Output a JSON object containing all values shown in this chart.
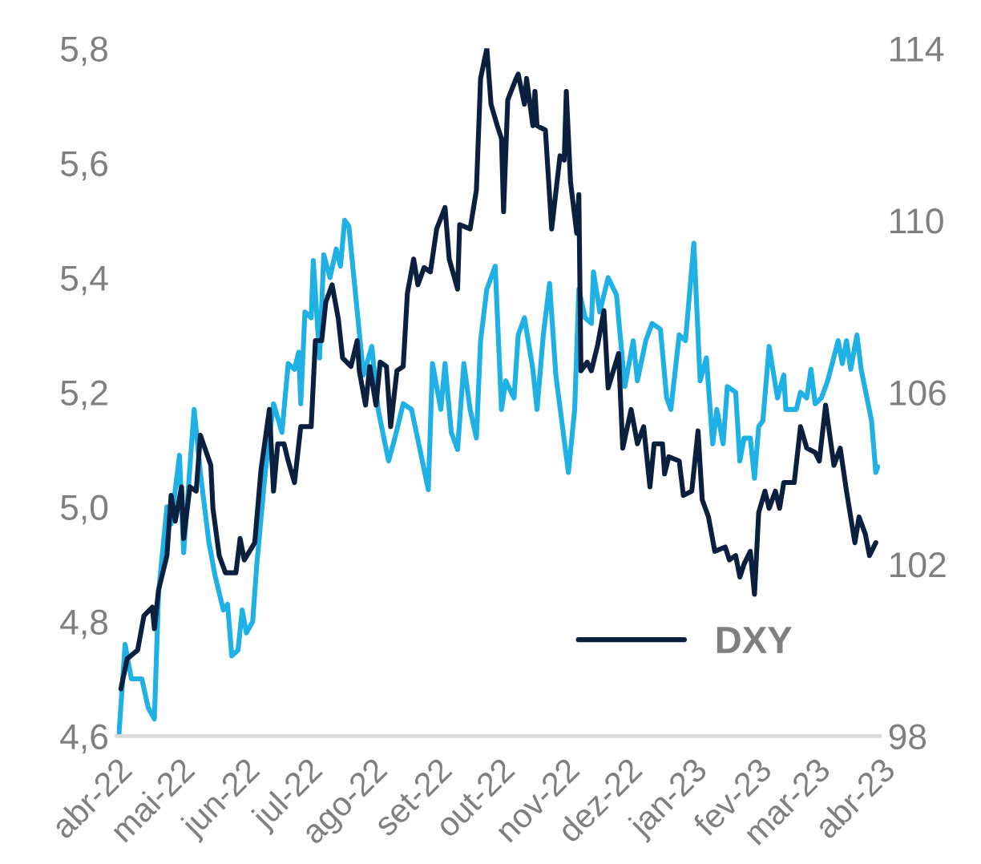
{
  "chart_data": {
    "type": "line",
    "xlim": [
      "2022-04-01",
      "2023-04-01"
    ],
    "xticks": [
      {
        "value": "2022-04-01",
        "label": "abr-22"
      },
      {
        "value": "2022-05-01",
        "label": "mai-22"
      },
      {
        "value": "2022-06-01",
        "label": "jun-22"
      },
      {
        "value": "2022-07-01",
        "label": "jul-22"
      },
      {
        "value": "2022-08-01",
        "label": "ago-22"
      },
      {
        "value": "2022-09-01",
        "label": "set-22"
      },
      {
        "value": "2022-10-01",
        "label": "out-22"
      },
      {
        "value": "2022-11-01",
        "label": "nov-22"
      },
      {
        "value": "2022-12-01",
        "label": "dez-22"
      },
      {
        "value": "2023-01-01",
        "label": "jan-23"
      },
      {
        "value": "2023-02-01",
        "label": "fev-23"
      },
      {
        "value": "2023-03-01",
        "label": "mar-23"
      },
      {
        "value": "2023-04-01",
        "label": "abr-23"
      }
    ],
    "ylim": [
      4.6,
      5.8
    ],
    "yticks": [
      {
        "value": 4.6,
        "label": "4,6"
      },
      {
        "value": 4.8,
        "label": "4,8"
      },
      {
        "value": 5.0,
        "label": "5,0"
      },
      {
        "value": 5.2,
        "label": "5,2"
      },
      {
        "value": 5.4,
        "label": "5,4"
      },
      {
        "value": 5.6,
        "label": "5,6"
      },
      {
        "value": 5.8,
        "label": "5,8"
      }
    ],
    "y2lim": [
      98,
      114
    ],
    "y2ticks": [
      98,
      102,
      106,
      110,
      114
    ],
    "grid": false,
    "legend": "bottom right",
    "series": [
      {
        "color": "#1fb0e6",
        "x": [
          "2022-04-02",
          "2022-04-05",
          "2022-04-08",
          "2022-04-12",
          "2022-04-13",
          "2022-04-16",
          "2022-04-19",
          "2022-04-21",
          "2022-04-25",
          "2022-04-27",
          "2022-05-01",
          "2022-05-03",
          "2022-05-08",
          "2022-05-11",
          "2022-05-15",
          "2022-05-18",
          "2022-05-22",
          "2022-05-24",
          "2022-05-26",
          "2022-05-29",
          "2022-05-31",
          "2022-06-02",
          "2022-06-05",
          "2022-06-07",
          "2022-06-11",
          "2022-06-15",
          "2022-06-19",
          "2022-06-22",
          "2022-06-25",
          "2022-06-27",
          "2022-06-28",
          "2022-06-30",
          "2022-07-03",
          "2022-07-04",
          "2022-07-07",
          "2022-07-09",
          "2022-07-12",
          "2022-07-15",
          "2022-07-17",
          "2022-07-19",
          "2022-07-21",
          "2022-07-28",
          "2022-08-01",
          "2022-08-04",
          "2022-08-09",
          "2022-08-12",
          "2022-08-16",
          "2022-08-20",
          "2022-08-24",
          "2022-08-28",
          "2022-08-30",
          "2022-09-03",
          "2022-09-05",
          "2022-09-08",
          "2022-09-11",
          "2022-09-14",
          "2022-09-17",
          "2022-09-20",
          "2022-09-22",
          "2022-09-25",
          "2022-09-29",
          "2022-10-02",
          "2022-10-04",
          "2022-10-08",
          "2022-10-10",
          "2022-10-13",
          "2022-10-17",
          "2022-10-19",
          "2022-10-22",
          "2022-10-25",
          "2022-10-28",
          "2022-11-03",
          "2022-11-06",
          "2022-11-08",
          "2022-11-11",
          "2022-11-14",
          "2022-11-15",
          "2022-11-18",
          "2022-11-22",
          "2022-11-26",
          "2022-11-30",
          "2022-12-04",
          "2022-12-06",
          "2022-12-10",
          "2022-12-13",
          "2022-12-17",
          "2022-12-20",
          "2022-12-22",
          "2022-12-26",
          "2022-12-29",
          "2023-01-02",
          "2023-01-05",
          "2023-01-08",
          "2023-01-11",
          "2023-01-13",
          "2023-01-16",
          "2023-01-18",
          "2023-01-22",
          "2023-01-24",
          "2023-01-26",
          "2023-01-29",
          "2023-01-31",
          "2023-02-02",
          "2023-02-04",
          "2023-02-07",
          "2023-02-11",
          "2023-02-14",
          "2023-02-15",
          "2023-02-20",
          "2023-02-22",
          "2023-02-25",
          "2023-02-27",
          "2023-03-01",
          "2023-03-04",
          "2023-03-07",
          "2023-03-12",
          "2023-03-14",
          "2023-03-16",
          "2023-03-18",
          "2023-03-21",
          "2023-03-23",
          "2023-03-28",
          "2023-03-30",
          "2023-03-31"
        ],
        "values": [
          4.6,
          4.76,
          4.7,
          4.7,
          4.7,
          4.65,
          4.63,
          4.85,
          5.0,
          4.97,
          5.09,
          4.92,
          5.17,
          5.06,
          4.94,
          4.88,
          4.82,
          4.83,
          4.74,
          4.75,
          4.82,
          4.78,
          4.8,
          4.9,
          5.06,
          5.18,
          5.13,
          5.25,
          5.24,
          5.27,
          5.18,
          5.34,
          5.33,
          5.43,
          5.26,
          5.44,
          5.4,
          5.45,
          5.42,
          5.5,
          5.49,
          5.23,
          5.28,
          5.17,
          5.08,
          5.12,
          5.18,
          5.17,
          5.1,
          5.03,
          5.25,
          5.17,
          5.25,
          5.13,
          5.1,
          5.25,
          5.17,
          5.12,
          5.29,
          5.38,
          5.42,
          5.17,
          5.22,
          5.19,
          5.3,
          5.33,
          5.24,
          5.17,
          5.3,
          5.39,
          5.23,
          5.06,
          5.17,
          5.38,
          5.33,
          5.32,
          5.41,
          5.34,
          5.4,
          5.37,
          5.21,
          5.29,
          5.22,
          5.29,
          5.32,
          5.31,
          5.19,
          5.17,
          5.3,
          5.29,
          5.46,
          5.22,
          5.26,
          5.11,
          5.17,
          5.11,
          5.21,
          5.2,
          5.08,
          5.12,
          5.12,
          5.05,
          5.14,
          5.15,
          5.28,
          5.19,
          5.23,
          5.17,
          5.17,
          5.2,
          5.19,
          5.24,
          5.18,
          5.19,
          5.22,
          5.29,
          5.25,
          5.29,
          5.24,
          5.3,
          5.24,
          5.15,
          5.06,
          5.07
        ]
      },
      {
        "name": "DXY",
        "color": "#0b1f3f",
        "axis": "y2",
        "x": [
          "2022-04-03",
          "2022-04-06",
          "2022-04-11",
          "2022-04-14",
          "2022-04-18",
          "2022-04-19",
          "2022-04-21",
          "2022-04-25",
          "2022-04-27",
          "2022-04-29",
          "2022-05-02",
          "2022-05-03",
          "2022-05-06",
          "2022-05-09",
          "2022-05-11",
          "2022-05-16",
          "2022-05-17",
          "2022-05-20",
          "2022-05-23",
          "2022-05-28",
          "2022-05-30",
          "2022-06-01",
          "2022-06-06",
          "2022-06-09",
          "2022-06-13",
          "2022-06-15",
          "2022-06-17",
          "2022-06-20",
          "2022-06-22",
          "2022-06-25",
          "2022-06-28",
          "2022-07-03",
          "2022-07-05",
          "2022-07-08",
          "2022-07-10",
          "2022-07-13",
          "2022-07-16",
          "2022-07-18",
          "2022-07-22",
          "2022-07-25",
          "2022-07-26",
          "2022-07-29",
          "2022-07-31",
          "2022-08-03",
          "2022-08-05",
          "2022-08-08",
          "2022-08-10",
          "2022-08-13",
          "2022-08-16",
          "2022-08-18",
          "2022-08-21",
          "2022-08-23",
          "2022-08-26",
          "2022-08-29",
          "2022-09-01",
          "2022-09-05",
          "2022-09-07",
          "2022-09-11",
          "2022-09-12",
          "2022-09-17",
          "2022-09-20",
          "2022-09-22",
          "2022-09-25",
          "2022-09-27",
          "2022-09-30",
          "2022-10-02",
          "2022-10-03",
          "2022-10-05",
          "2022-10-09",
          "2022-10-10",
          "2022-10-13",
          "2022-10-14",
          "2022-10-17",
          "2022-10-18",
          "2022-10-19",
          "2022-10-23",
          "2022-10-26",
          "2022-10-30",
          "2022-11-01",
          "2022-11-02",
          "2022-11-04",
          "2022-11-07",
          "2022-11-08",
          "2022-11-09",
          "2022-11-12",
          "2022-11-14",
          "2022-11-17",
          "2022-11-20",
          "2022-11-22",
          "2022-11-27",
          "2022-11-29",
          "2022-12-03",
          "2022-12-06",
          "2022-12-09",
          "2022-12-12",
          "2022-12-14",
          "2022-12-18",
          "2022-12-19",
          "2022-12-21",
          "2022-12-26",
          "2022-12-28",
          "2023-01-01",
          "2023-01-04",
          "2023-01-06",
          "2023-01-09",
          "2023-01-12",
          "2023-01-17",
          "2023-01-19",
          "2023-01-22",
          "2023-01-24",
          "2023-01-26",
          "2023-01-29",
          "2023-01-31",
          "2023-02-02",
          "2023-02-05",
          "2023-02-07",
          "2023-02-10",
          "2023-02-12",
          "2023-02-14",
          "2023-02-19",
          "2023-02-22",
          "2023-02-25",
          "2023-03-01",
          "2023-03-03",
          "2023-03-06",
          "2023-03-10",
          "2023-03-13",
          "2023-03-16",
          "2023-03-20",
          "2023-03-22",
          "2023-03-25",
          "2023-03-27",
          "2023-03-30"
        ],
        "values": [
          99.1,
          99.8,
          100.0,
          100.8,
          101.0,
          100.5,
          101.4,
          102.2,
          103.6,
          103.0,
          103.8,
          102.6,
          103.8,
          103.7,
          105.0,
          104.3,
          103.3,
          102.2,
          101.8,
          101.8,
          102.6,
          102.1,
          102.5,
          104.2,
          105.6,
          103.7,
          104.8,
          104.8,
          104.4,
          103.9,
          105.2,
          105.2,
          107.2,
          107.2,
          108.1,
          108.5,
          107.7,
          106.8,
          106.6,
          107.2,
          106.5,
          105.7,
          106.6,
          105.7,
          106.7,
          106.6,
          105.2,
          106.5,
          106.6,
          108.3,
          109.1,
          108.5,
          108.9,
          108.8,
          109.8,
          110.3,
          109.1,
          108.4,
          109.9,
          109.8,
          110.7,
          113.3,
          114.0,
          112.7,
          112.2,
          111.9,
          110.2,
          112.8,
          113.3,
          113.4,
          112.7,
          113.3,
          112.2,
          113.0,
          112.2,
          112.1,
          109.8,
          111.5,
          111.4,
          113.0,
          110.9,
          109.7,
          110.6,
          106.5,
          106.7,
          106.5,
          107.1,
          107.9,
          106.1,
          106.9,
          104.7,
          105.6,
          104.8,
          105.2,
          103.8,
          104.8,
          104.8,
          104.1,
          104.5,
          104.4,
          103.6,
          103.7,
          105.1,
          103.5,
          103.1,
          102.3,
          102.4,
          102.1,
          102.2,
          101.7,
          102.0,
          102.3,
          101.3,
          103.2,
          103.7,
          103.3,
          103.7,
          103.3,
          103.9,
          103.9,
          105.2,
          104.7,
          104.6,
          104.4,
          105.7,
          104.3,
          104.7,
          103.7,
          102.5,
          103.1,
          102.7,
          102.2,
          102.5
        ]
      }
    ]
  }
}
